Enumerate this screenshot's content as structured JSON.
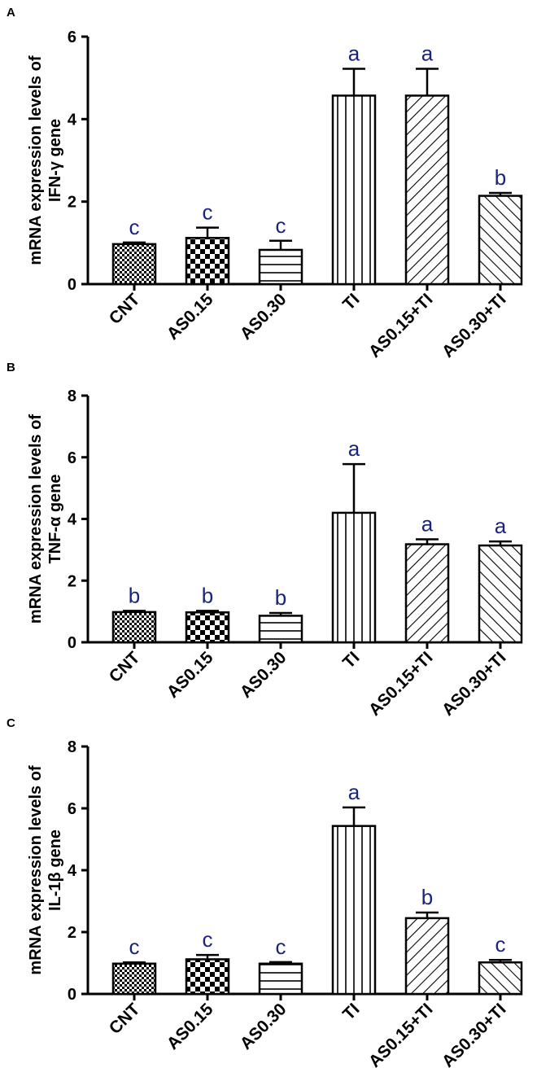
{
  "colors": {
    "axis": "#000000",
    "bar_stroke": "#000000",
    "letter": "#1a237e",
    "background": "#ffffff"
  },
  "chart_data": [
    {
      "type": "bar",
      "panel": "A",
      "ylabel_lines": [
        "mRNA expression levels of",
        "IFN-γ gene"
      ],
      "ylim": [
        0,
        6
      ],
      "yticks": [
        0,
        2,
        4,
        6
      ],
      "categories": [
        "CNT",
        "AS0.15",
        "AS0.30",
        "TI",
        "AS0.15+TI",
        "AS0.30+TI"
      ],
      "patterns": [
        "fine-check",
        "check",
        "hlines",
        "vlines",
        "diag-right",
        "diag-left"
      ],
      "values": [
        0.97,
        1.12,
        0.83,
        4.57,
        4.57,
        2.14
      ],
      "errors": [
        0.04,
        0.25,
        0.22,
        0.65,
        0.65,
        0.07
      ],
      "letters": [
        "c",
        "c",
        "c",
        "a",
        "a",
        "b"
      ]
    },
    {
      "type": "bar",
      "panel": "B",
      "ylabel_lines": [
        "mRNA expression levels of",
        "TNF-α gene"
      ],
      "ylim": [
        0,
        8
      ],
      "yticks": [
        0,
        2,
        4,
        6,
        8
      ],
      "categories": [
        "CNT",
        "AS0.15",
        "AS0.30",
        "TI",
        "AS0.15+TI",
        "AS0.30+TI"
      ],
      "patterns": [
        "fine-check",
        "check",
        "hlines",
        "vlines",
        "diag-right",
        "diag-left"
      ],
      "values": [
        0.98,
        0.97,
        0.86,
        4.2,
        3.18,
        3.14
      ],
      "errors": [
        0.04,
        0.05,
        0.09,
        1.58,
        0.16,
        0.13
      ],
      "letters": [
        "b",
        "b",
        "b",
        "a",
        "a",
        "a"
      ]
    },
    {
      "type": "bar",
      "panel": "C",
      "ylabel_lines": [
        "mRNA expression levels of",
        "IL-1β gene"
      ],
      "ylim": [
        0,
        8
      ],
      "yticks": [
        0,
        2,
        4,
        6,
        8
      ],
      "categories": [
        "CNT",
        "AS0.15",
        "AS0.30",
        "TI",
        "AS0.15+TI",
        "AS0.30+TI"
      ],
      "patterns": [
        "fine-check",
        "check",
        "hlines",
        "vlines",
        "diag-right",
        "diag-left"
      ],
      "values": [
        0.98,
        1.12,
        0.98,
        5.43,
        2.45,
        1.02
      ],
      "errors": [
        0.04,
        0.14,
        0.05,
        0.6,
        0.18,
        0.08
      ],
      "letters": [
        "c",
        "c",
        "c",
        "a",
        "b",
        "c"
      ]
    }
  ]
}
